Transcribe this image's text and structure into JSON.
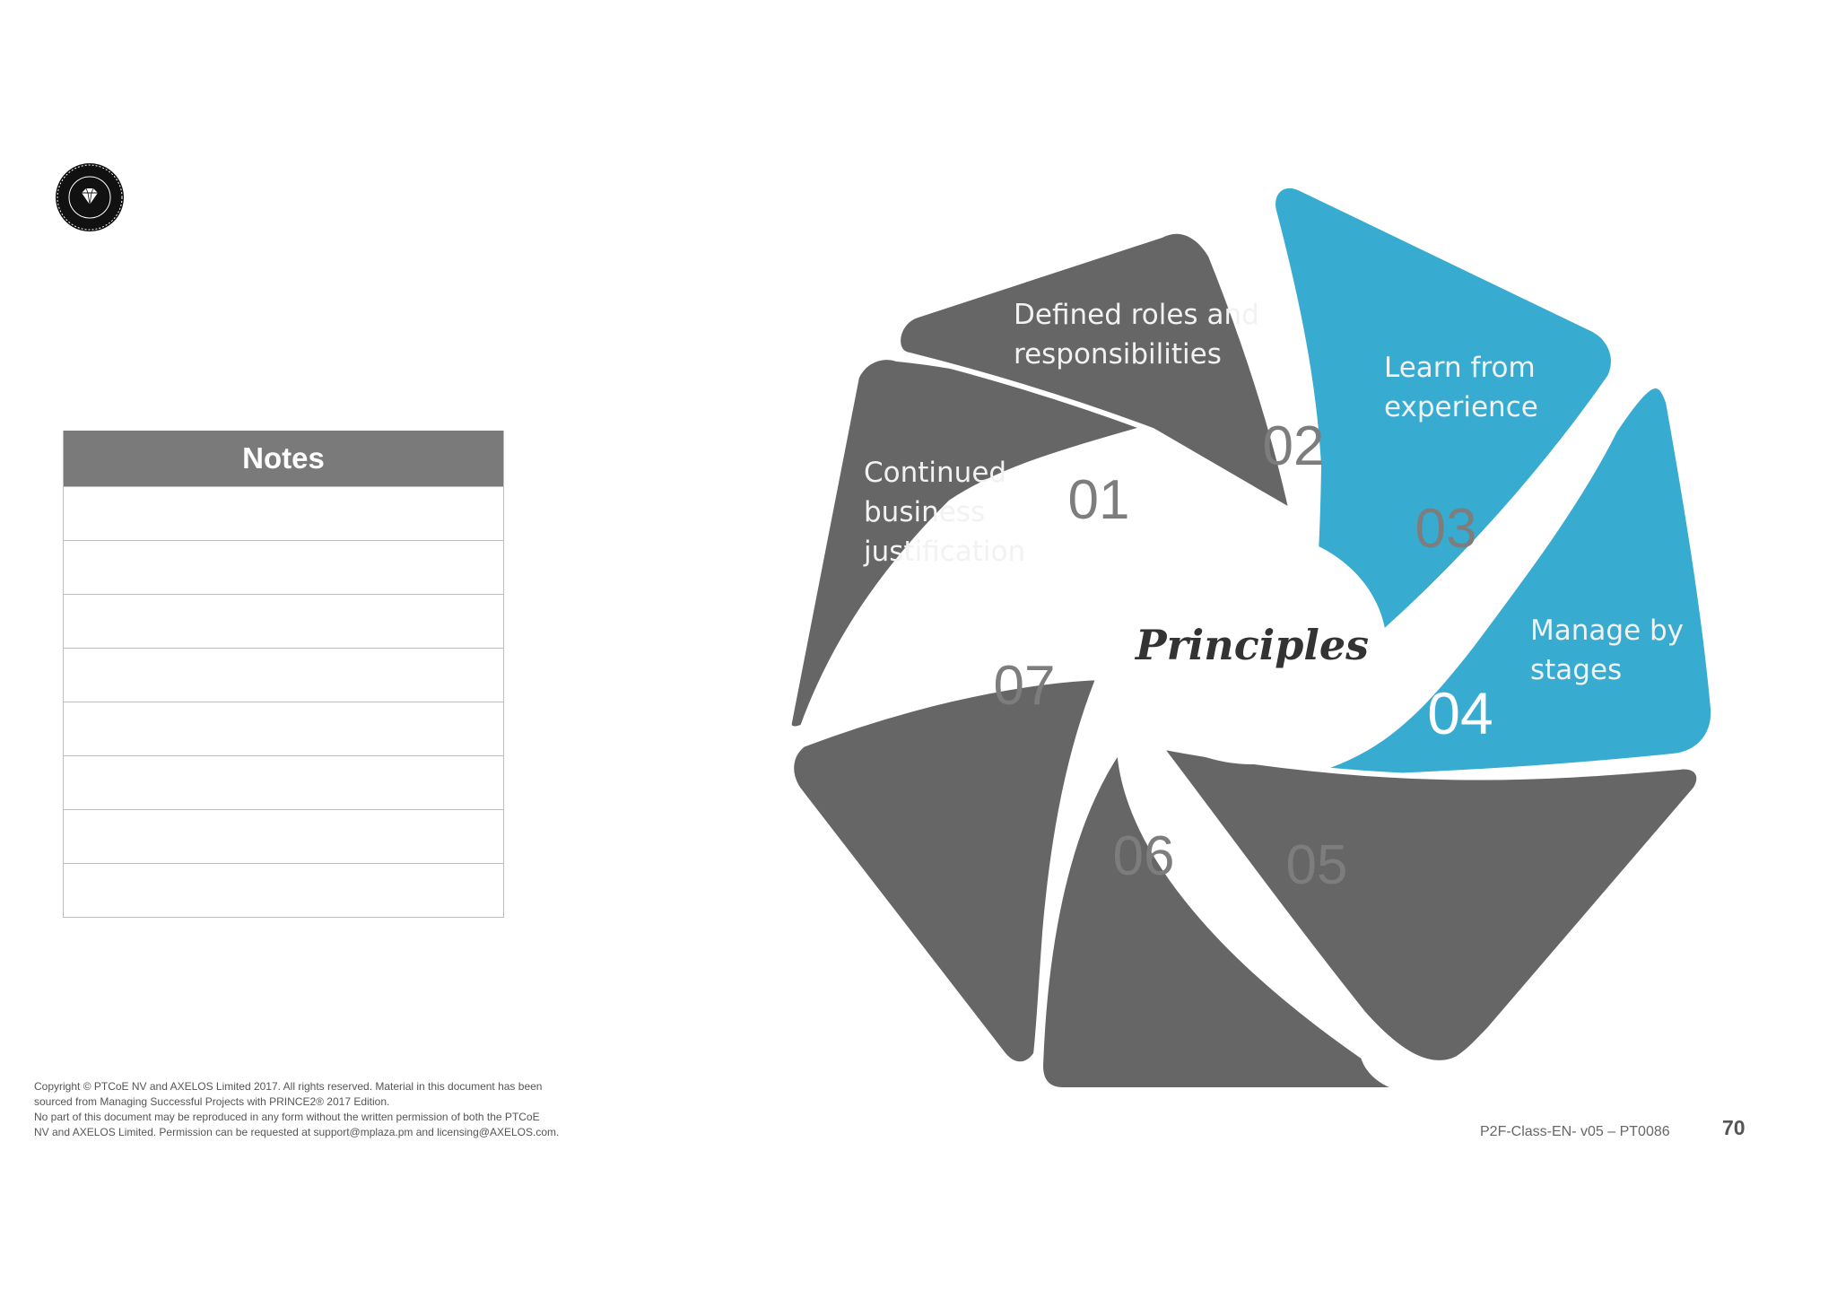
{
  "logo": {
    "icon": "diamond-icon",
    "ring_text": "Professional Training Center of Excellence"
  },
  "notes": {
    "title": "Notes",
    "rows": [
      "",
      "",
      "",
      "",
      "",
      "",
      "",
      ""
    ]
  },
  "diagram": {
    "center_label": "Principles",
    "colors": {
      "segment": "#666666",
      "highlight": "#38abd0",
      "number_dim": "#7d7d7d",
      "text": "#f2f2f2"
    },
    "segments": [
      {
        "number": "01",
        "label_lines": [
          "Continued",
          "business",
          "justification"
        ],
        "highlighted": false
      },
      {
        "number": "02",
        "label_lines": [
          "Defined roles and",
          "responsibilities"
        ],
        "highlighted": false
      },
      {
        "number": "03",
        "label_lines": [
          "Learn from",
          "experience"
        ],
        "highlighted": false
      },
      {
        "number": "04",
        "label_lines": [
          "Manage by",
          "stages"
        ],
        "highlighted": true
      },
      {
        "number": "05",
        "label_lines": [],
        "highlighted": false
      },
      {
        "number": "06",
        "label_lines": [],
        "highlighted": false
      },
      {
        "number": "07",
        "label_lines": [],
        "highlighted": false
      }
    ]
  },
  "footer": {
    "copyright_lines": [
      "Copyright © PTCoE NV and AXELOS Limited 2017. All rights reserved. Material in this document has been",
      "sourced from Managing Successful Projects with PRINCE2® 2017 Edition.",
      "No part of this document may be reproduced in any form without the written permission of both the PTCoE",
      "NV and AXELOS Limited. Permission can be requested at support@mplaza.pm and licensing@AXELOS.com."
    ],
    "doc_code": "P2F-Class-EN- v05 – PT0086",
    "page_number": "70"
  }
}
